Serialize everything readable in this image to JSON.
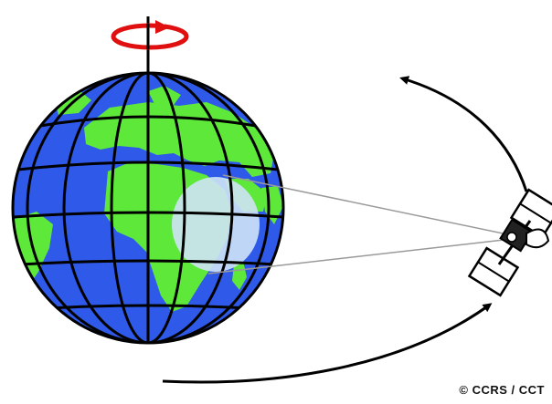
{
  "credit": "© CCRS / CCT",
  "colors": {
    "ocean": "#2f59e8",
    "land": "#5ee83a",
    "grid": "#000000",
    "footprint": "#cfe3f7",
    "rotation_arrow": "#e01010",
    "orbit_arrow": "#000000",
    "beam": "#9a9a9a",
    "solar_panel": "#ffffff",
    "satellite_body": "#222222"
  },
  "icons": {
    "rotation": "rotation-arrow-icon",
    "satellite": "satellite-icon",
    "earth": "earth-globe-icon"
  }
}
